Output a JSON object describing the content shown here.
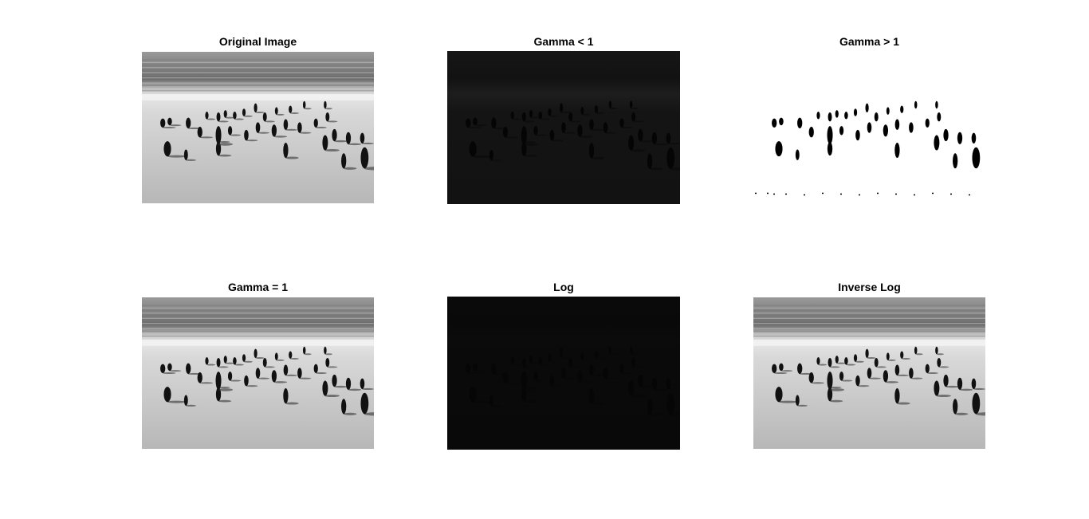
{
  "figure": {
    "panels": [
      {
        "id": "original",
        "title": "Original Image",
        "variant": "normal"
      },
      {
        "id": "gamma-lt-1",
        "title": "Gamma < 1",
        "variant": "dark"
      },
      {
        "id": "gamma-gt-1",
        "title": "Gamma > 1",
        "variant": "bright"
      },
      {
        "id": "gamma-eq-1",
        "title": "Gamma = 1",
        "variant": "normal"
      },
      {
        "id": "log",
        "title": "Log",
        "variant": "verydark"
      },
      {
        "id": "inverse-log",
        "title": "Inverse Log",
        "variant": "normal"
      }
    ],
    "colors": {
      "background": "#ffffff",
      "title_text": "#000000"
    }
  }
}
